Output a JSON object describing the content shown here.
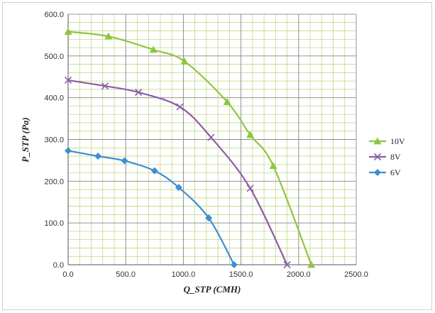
{
  "chart_data": {
    "type": "line",
    "title": "",
    "xlabel": "Q_STP (CMH)",
    "ylabel": "P_STP (Pa)",
    "xlim": [
      0,
      2500
    ],
    "ylim": [
      0,
      600
    ],
    "x_ticks": [
      "0.0",
      "500.0",
      "1000.0",
      "1500.0",
      "2000.0",
      "2500.0"
    ],
    "y_ticks": [
      "0.0",
      "100.0",
      "200.0",
      "300.0",
      "400.0",
      "500.0",
      "600.0"
    ],
    "x_tick_values": [
      0,
      500,
      1000,
      1500,
      2000,
      2500
    ],
    "y_tick_values": [
      0,
      100,
      200,
      300,
      400,
      500,
      600
    ],
    "minor_x_step": 100,
    "minor_y_step": 20,
    "grid": true,
    "legend_position": "right",
    "series": [
      {
        "name": "10V",
        "color": "#8dc63f",
        "marker": "triangle",
        "points": [
          {
            "x": 0,
            "y": 558
          },
          {
            "x": 350,
            "y": 547
          },
          {
            "x": 740,
            "y": 515
          },
          {
            "x": 1010,
            "y": 487
          },
          {
            "x": 1380,
            "y": 390
          },
          {
            "x": 1580,
            "y": 311
          },
          {
            "x": 1780,
            "y": 237
          },
          {
            "x": 2110,
            "y": 0
          }
        ]
      },
      {
        "name": "8V",
        "color": "#8e5ca8",
        "marker": "x",
        "points": [
          {
            "x": 0,
            "y": 442
          },
          {
            "x": 320,
            "y": 428
          },
          {
            "x": 610,
            "y": 413
          },
          {
            "x": 970,
            "y": 378
          },
          {
            "x": 1240,
            "y": 305
          },
          {
            "x": 1580,
            "y": 183
          },
          {
            "x": 1900,
            "y": 0
          }
        ]
      },
      {
        "name": "6V",
        "color": "#3e8ed0",
        "marker": "diamond",
        "points": [
          {
            "x": 0,
            "y": 273
          },
          {
            "x": 260,
            "y": 260
          },
          {
            "x": 490,
            "y": 249
          },
          {
            "x": 750,
            "y": 225
          },
          {
            "x": 960,
            "y": 185
          },
          {
            "x": 1220,
            "y": 112
          },
          {
            "x": 1440,
            "y": 0
          }
        ]
      }
    ]
  }
}
